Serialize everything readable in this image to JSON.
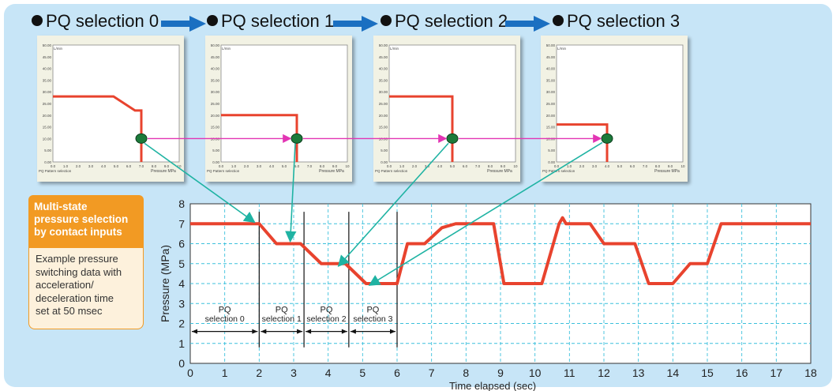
{
  "steps": [
    {
      "label": "PQ selection 0"
    },
    {
      "label": "PQ selection 1"
    },
    {
      "label": "PQ selection 2"
    },
    {
      "label": "PQ selection 3"
    }
  ],
  "mini_plot": {
    "y_unit": "L/min",
    "y_ticks": [
      "50.00",
      "45.00",
      "40.00",
      "35.00",
      "30.00",
      "25.00",
      "20.00",
      "15.00",
      "10.00",
      "5.00",
      "0.00"
    ],
    "x_ticks": [
      "0.0",
      "1.0",
      "2.0",
      "3.0",
      "4.0",
      "5.0",
      "6.0",
      "7.0",
      "8.0",
      "9.0",
      "10"
    ],
    "x_label": "Pressure MPa",
    "bottom_left": "PQ Pattern selection",
    "line_color": "#e8432e"
  },
  "callout": {
    "title_lines": [
      "Multi-state",
      "pressure selection",
      "by contact inputs"
    ],
    "body_lines": [
      "Example pressure",
      "switching data with",
      "acceleration/",
      "deceleration time",
      "set at 50 msec"
    ]
  },
  "chart_data": [
    {
      "type": "line",
      "title": "",
      "xlabel": "",
      "ylabel": "L/min",
      "xlim": [
        0,
        10
      ],
      "ylim": [
        0,
        50
      ],
      "x": [
        0,
        4.8,
        6.5,
        7,
        7
      ],
      "y": [
        28,
        28,
        22,
        22,
        0
      ],
      "operating_point": [
        7,
        10
      ]
    },
    {
      "type": "line",
      "title": "",
      "xlabel": "",
      "ylabel": "L/min",
      "xlim": [
        0,
        10
      ],
      "ylim": [
        0,
        50
      ],
      "x": [
        0,
        6,
        6
      ],
      "y": [
        20,
        20,
        0
      ],
      "operating_point": [
        6,
        10
      ]
    },
    {
      "type": "line",
      "title": "",
      "xlabel": "",
      "ylabel": "L/min",
      "xlim": [
        0,
        10
      ],
      "ylim": [
        0,
        50
      ],
      "x": [
        0,
        5,
        5
      ],
      "y": [
        28,
        28,
        0
      ],
      "operating_point": [
        5,
        10
      ]
    },
    {
      "type": "line",
      "title": "",
      "xlabel": "",
      "ylabel": "L/min",
      "xlim": [
        0,
        10
      ],
      "ylim": [
        0,
        50
      ],
      "x": [
        0,
        4,
        4
      ],
      "y": [
        16,
        16,
        0
      ],
      "operating_point": [
        4,
        10
      ]
    },
    {
      "type": "line",
      "title": "",
      "xlabel": "Time elapsed (sec)",
      "ylabel": "Pressure (MPa)",
      "xlim": [
        0,
        18
      ],
      "ylim": [
        0,
        8
      ],
      "x_ticks": [
        "0",
        "1",
        "2",
        "3",
        "4",
        "5",
        "6",
        "7",
        "8",
        "9",
        "10",
        "11",
        "12",
        "13",
        "14",
        "15",
        "16",
        "17",
        "18"
      ],
      "y_ticks": [
        "0",
        "1",
        "2",
        "3",
        "4",
        "5",
        "6",
        "7",
        "8"
      ],
      "grid": true,
      "color": "#e8432e",
      "series": [
        {
          "x": [
            0,
            2,
            2.5,
            3.2,
            3.8,
            4.5,
            5.1,
            6,
            6.3,
            6.8,
            7.3,
            7.7,
            8.8,
            9.1,
            10.2,
            10.7,
            10.8,
            10.9,
            11.6,
            12,
            12.9,
            13.3,
            14,
            14.5,
            15,
            15.4,
            18
          ],
          "y": [
            7,
            7,
            6,
            6,
            5,
            5,
            4,
            4,
            6,
            6,
            6.8,
            7,
            7,
            4,
            4,
            7,
            7.3,
            7,
            7,
            6,
            6,
            4,
            4,
            5,
            5,
            7,
            7
          ]
        }
      ],
      "selection_markers": [
        2,
        3.3,
        4.6,
        6
      ],
      "segments": [
        {
          "label_line1": "PQ",
          "label_line2": "selection 0",
          "from": 0,
          "to": 2
        },
        {
          "label_line1": "PQ",
          "label_line2": "selection 1",
          "from": 2,
          "to": 3.3
        },
        {
          "label_line1": "PQ",
          "label_line2": "selection 2",
          "from": 3.3,
          "to": 4.6
        },
        {
          "label_line1": "PQ",
          "label_line2": "selection 3",
          "from": 4.6,
          "to": 6
        }
      ]
    }
  ]
}
